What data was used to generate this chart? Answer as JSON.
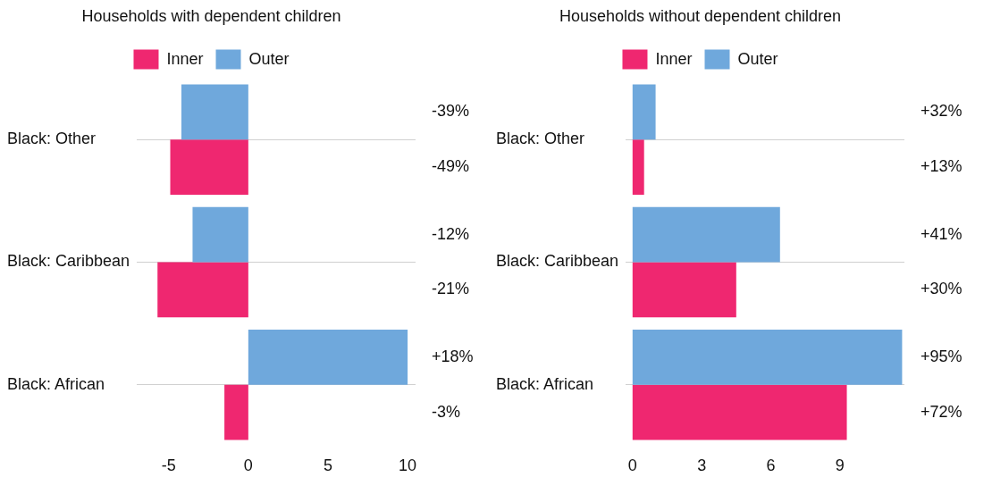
{
  "chart_data": [
    {
      "type": "bar",
      "orientation": "horizontal",
      "title": "Households with dependent children",
      "categories": [
        "Black: Other",
        "Black: Caribbean",
        "Black: African"
      ],
      "series": [
        {
          "name": "Inner",
          "color": "#ef2770",
          "values": [
            -4.9,
            -5.7,
            -1.5
          ]
        },
        {
          "name": "Outer",
          "color": "#6fa8dc",
          "values": [
            -4.2,
            -3.5,
            10.0
          ]
        }
      ],
      "annotations": [
        "-39%",
        "-49%",
        "-12%",
        "-21%",
        "+18%",
        "-3%"
      ],
      "xlim": [
        -7,
        10.5
      ],
      "xticks": [
        -5,
        0,
        5,
        10
      ],
      "grid": "y",
      "legend": "top"
    },
    {
      "type": "bar",
      "orientation": "horizontal",
      "title": "Households without dependent children",
      "categories": [
        "Black: Other",
        "Black: Caribbean",
        "Black: African"
      ],
      "series": [
        {
          "name": "Inner",
          "color": "#ef2770",
          "values": [
            0.5,
            4.5,
            9.3
          ]
        },
        {
          "name": "Outer",
          "color": "#6fa8dc",
          "values": [
            1.0,
            6.4,
            11.7
          ]
        }
      ],
      "annotations": [
        "+32%",
        "+13%",
        "+41%",
        "+30%",
        "+95%",
        "+72%"
      ],
      "xlim": [
        -0.3,
        11.8
      ],
      "xticks": [
        0,
        3,
        6,
        9
      ],
      "grid": "y",
      "legend": "top"
    }
  ]
}
